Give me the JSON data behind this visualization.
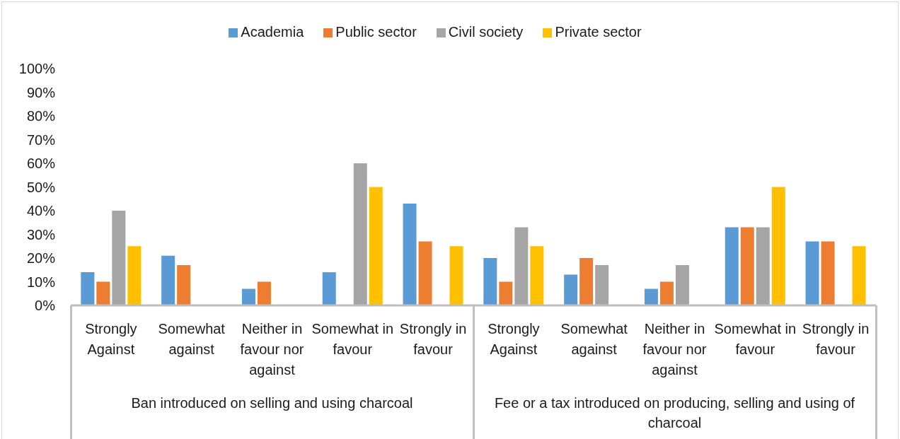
{
  "chart_data": {
    "type": "bar",
    "categories": [
      "Strongly Against",
      "Somewhat against",
      "Neither in favour nor against",
      "Somewhat in favour",
      "Strongly in favour",
      "Strongly Against",
      "Somewhat against",
      "Neither in favour nor against",
      "Somewhat in favour",
      "Strongly in favour"
    ],
    "series": [
      {
        "name": "Academia",
        "color": "#5b9bd5",
        "values": [
          14,
          21,
          7,
          14,
          43,
          20,
          13,
          7,
          33,
          27
        ]
      },
      {
        "name": "Public sector",
        "color": "#ed7d31",
        "values": [
          10,
          17,
          10,
          null,
          27,
          10,
          20,
          10,
          33,
          27
        ]
      },
      {
        "name": "Civil society",
        "color": "#a5a5a5",
        "values": [
          40,
          null,
          null,
          60,
          null,
          33,
          17,
          17,
          33,
          null
        ]
      },
      {
        "name": "Private sector",
        "color": "#ffc000",
        "values": [
          25,
          null,
          null,
          50,
          25,
          25,
          null,
          null,
          50,
          25
        ]
      }
    ],
    "ylim": [
      0,
      100
    ],
    "yticks": [
      {
        "value": 0,
        "label": "0%"
      },
      {
        "value": 10,
        "label": "10%"
      },
      {
        "value": 20,
        "label": "20%"
      },
      {
        "value": 30,
        "label": "30%"
      },
      {
        "value": 40,
        "label": "40%"
      },
      {
        "value": 50,
        "label": "50%"
      },
      {
        "value": 60,
        "label": "60%"
      },
      {
        "value": 70,
        "label": "70%"
      },
      {
        "value": 80,
        "label": "80%"
      },
      {
        "value": 90,
        "label": "90%"
      },
      {
        "value": 100,
        "label": "100%"
      }
    ],
    "legend": "top",
    "annotations": [
      "Ban introduced on selling and using charcoal",
      "Fee or a tax introduced on producing, selling and using of charcoal"
    ]
  }
}
